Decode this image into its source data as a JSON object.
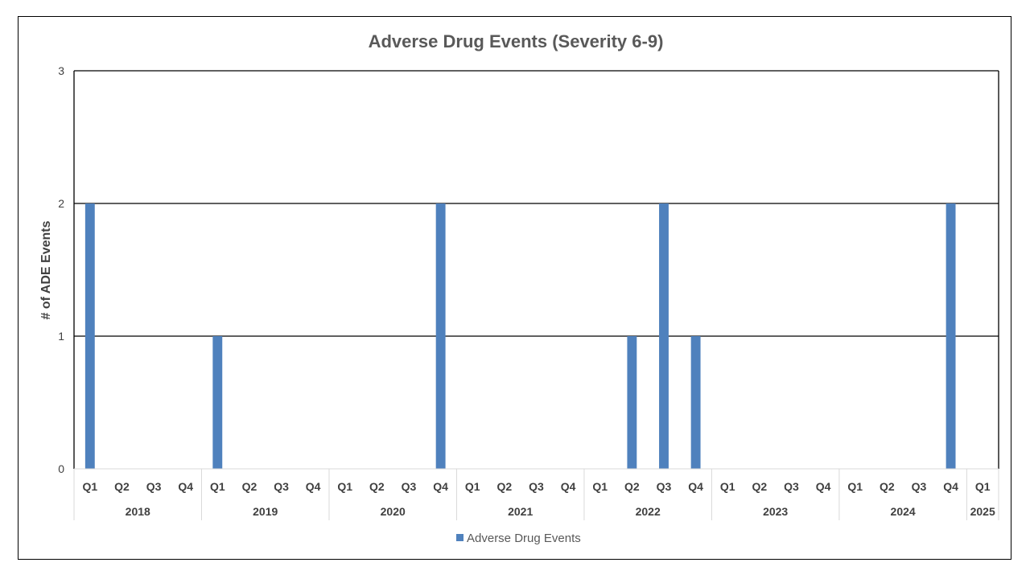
{
  "chart_data": {
    "type": "bar",
    "title": "Adverse Drug Events (Severity 6-9)",
    "xlabel": "",
    "ylabel": "# of ADE Events",
    "ylim": [
      0,
      3
    ],
    "yticks": [
      "0",
      "1",
      "2",
      "3"
    ],
    "grid": true,
    "legend_position": "bottom",
    "groups": [
      {
        "label": "2018",
        "quarters": [
          "Q1",
          "Q2",
          "Q3",
          "Q4"
        ]
      },
      {
        "label": "2019",
        "quarters": [
          "Q1",
          "Q2",
          "Q3",
          "Q4"
        ]
      },
      {
        "label": "2020",
        "quarters": [
          "Q1",
          "Q2",
          "Q3",
          "Q4"
        ]
      },
      {
        "label": "2021",
        "quarters": [
          "Q1",
          "Q2",
          "Q3",
          "Q4"
        ]
      },
      {
        "label": "2022",
        "quarters": [
          "Q1",
          "Q2",
          "Q3",
          "Q4"
        ]
      },
      {
        "label": "2023",
        "quarters": [
          "Q1",
          "Q2",
          "Q3",
          "Q4"
        ]
      },
      {
        "label": "2024",
        "quarters": [
          "Q1",
          "Q2",
          "Q3",
          "Q4"
        ]
      },
      {
        "label": "2025",
        "quarters": [
          "Q1"
        ]
      }
    ],
    "series": [
      {
        "name": "Adverse Drug Events",
        "color": "#4F81BD",
        "values": [
          2,
          0,
          0,
          0,
          1,
          0,
          0,
          0,
          0,
          0,
          0,
          2,
          0,
          0,
          0,
          0,
          0,
          1,
          2,
          1,
          0,
          0,
          0,
          0,
          0,
          0,
          0,
          2,
          0
        ]
      }
    ]
  }
}
